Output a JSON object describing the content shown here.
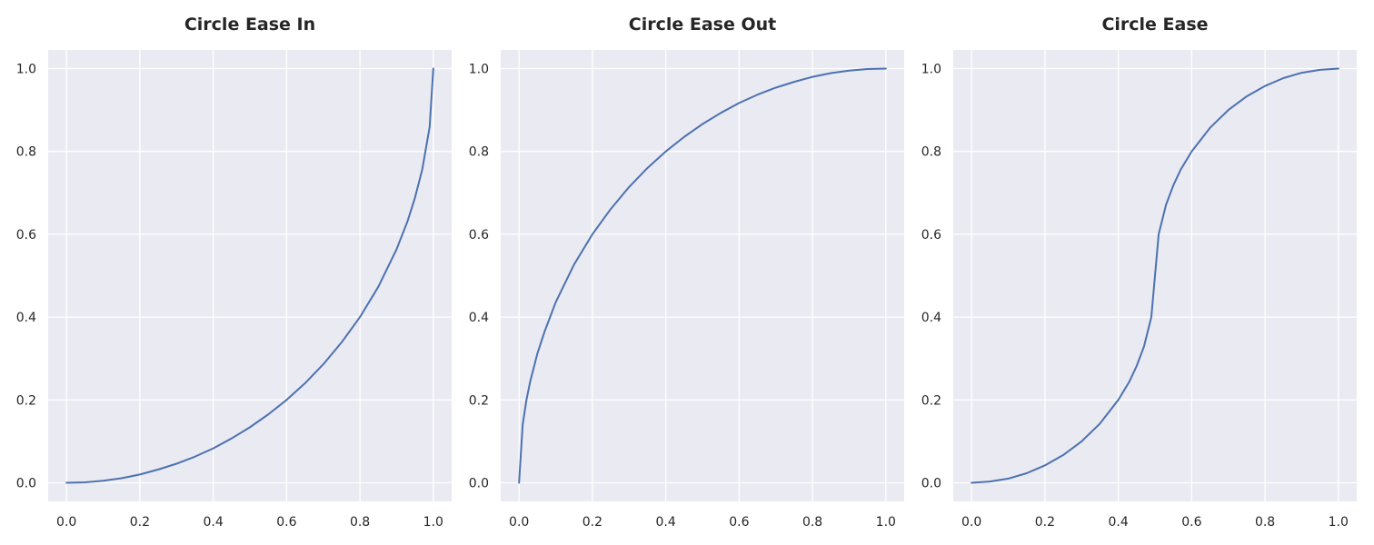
{
  "chart_data": [
    {
      "type": "line",
      "title": "Circle Ease In",
      "xlabel": "",
      "ylabel": "",
      "xlim": [
        -0.05,
        1.05
      ],
      "ylim": [
        -0.045,
        1.045
      ],
      "xticks": [
        0.0,
        0.2,
        0.4,
        0.6,
        0.8,
        1.0
      ],
      "yticks": [
        0.0,
        0.2,
        0.4,
        0.6,
        0.8,
        1.0
      ],
      "xtick_labels": [
        "0.0",
        "0.2",
        "0.4",
        "0.6",
        "0.8",
        "1.0"
      ],
      "ytick_labels": [
        "0.0",
        "0.2",
        "0.4",
        "0.6",
        "0.8",
        "1.0"
      ],
      "grid": true,
      "series": [
        {
          "color": "#4c72b0",
          "x": [
            0.0,
            0.05,
            0.1,
            0.15,
            0.2,
            0.25,
            0.3,
            0.35,
            0.4,
            0.45,
            0.5,
            0.55,
            0.6,
            0.65,
            0.7,
            0.75,
            0.8,
            0.85,
            0.9,
            0.93,
            0.95,
            0.97,
            0.99,
            1.0
          ],
          "y": [
            0.0,
            0.001,
            0.005,
            0.011,
            0.02,
            0.032,
            0.046,
            0.063,
            0.083,
            0.107,
            0.134,
            0.165,
            0.2,
            0.24,
            0.286,
            0.339,
            0.4,
            0.473,
            0.564,
            0.632,
            0.688,
            0.757,
            0.859,
            1.0
          ]
        }
      ]
    },
    {
      "type": "line",
      "title": "Circle Ease Out",
      "xlabel": "",
      "ylabel": "",
      "xlim": [
        -0.05,
        1.05
      ],
      "ylim": [
        -0.045,
        1.045
      ],
      "xticks": [
        0.0,
        0.2,
        0.4,
        0.6,
        0.8,
        1.0
      ],
      "yticks": [
        0.0,
        0.2,
        0.4,
        0.6,
        0.8,
        1.0
      ],
      "xtick_labels": [
        "0.0",
        "0.2",
        "0.4",
        "0.6",
        "0.8",
        "1.0"
      ],
      "ytick_labels": [
        "0.0",
        "0.2",
        "0.4",
        "0.6",
        "0.8",
        "1.0"
      ],
      "grid": true,
      "series": [
        {
          "color": "#4c72b0",
          "x": [
            0.0,
            0.01,
            0.02,
            0.03,
            0.05,
            0.07,
            0.1,
            0.15,
            0.2,
            0.25,
            0.3,
            0.35,
            0.4,
            0.45,
            0.5,
            0.55,
            0.6,
            0.65,
            0.7,
            0.75,
            0.8,
            0.85,
            0.9,
            0.95,
            1.0
          ],
          "y": [
            0.0,
            0.141,
            0.199,
            0.243,
            0.312,
            0.366,
            0.436,
            0.527,
            0.6,
            0.661,
            0.714,
            0.76,
            0.8,
            0.835,
            0.866,
            0.893,
            0.917,
            0.937,
            0.954,
            0.968,
            0.98,
            0.989,
            0.995,
            0.999,
            1.0
          ]
        }
      ]
    },
    {
      "type": "line",
      "title": "Circle Ease",
      "xlabel": "",
      "ylabel": "",
      "xlim": [
        -0.05,
        1.05
      ],
      "ylim": [
        -0.045,
        1.045
      ],
      "xticks": [
        0.0,
        0.2,
        0.4,
        0.6,
        0.8,
        1.0
      ],
      "yticks": [
        0.0,
        0.2,
        0.4,
        0.6,
        0.8,
        1.0
      ],
      "xtick_labels": [
        "0.0",
        "0.2",
        "0.4",
        "0.6",
        "0.8",
        "1.0"
      ],
      "ytick_labels": [
        "0.0",
        "0.2",
        "0.4",
        "0.6",
        "0.8",
        "1.0"
      ],
      "grid": true,
      "series": [
        {
          "color": "#4c72b0",
          "x": [
            0.0,
            0.05,
            0.1,
            0.15,
            0.2,
            0.25,
            0.3,
            0.35,
            0.4,
            0.43,
            0.45,
            0.47,
            0.49,
            0.51,
            0.53,
            0.55,
            0.57,
            0.6,
            0.65,
            0.7,
            0.75,
            0.8,
            0.85,
            0.9,
            0.95,
            1.0
          ],
          "y": [
            0.0,
            0.003,
            0.01,
            0.023,
            0.042,
            0.067,
            0.1,
            0.143,
            0.2,
            0.244,
            0.282,
            0.329,
            0.4,
            0.6,
            0.671,
            0.718,
            0.756,
            0.8,
            0.857,
            0.9,
            0.933,
            0.958,
            0.977,
            0.99,
            0.997,
            1.0
          ]
        }
      ]
    }
  ]
}
